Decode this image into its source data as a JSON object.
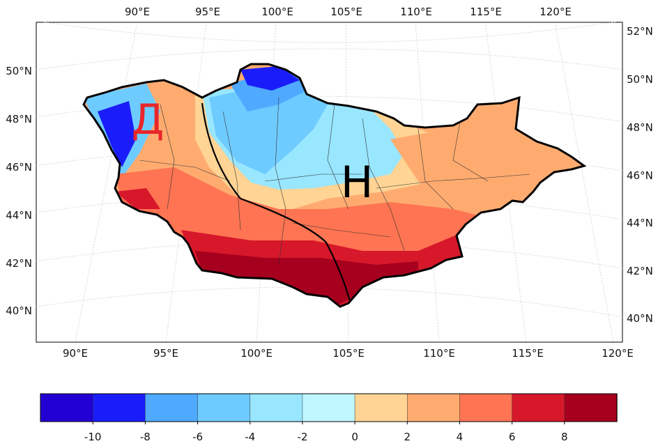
{
  "map": {
    "top_lon_labels": [
      "90°E",
      "95°E",
      "100°E",
      "105°E",
      "110°E",
      "115°E",
      "120°E"
    ],
    "bottom_lon_labels": [
      "90°E",
      "95°E",
      "100°E",
      "105°E",
      "110°E",
      "115°E",
      "120°E"
    ],
    "left_lat_labels": [
      "50°N",
      "48°N",
      "46°N",
      "44°N",
      "42°N",
      "40°N"
    ],
    "right_lat_labels": [
      "52°N",
      "50°N",
      "48°N",
      "46°N",
      "44°N",
      "42°N",
      "40°N"
    ],
    "region_west_label": "Д",
    "region_east_label": "Н",
    "region_west_color": "#e8262a",
    "region_east_color": "#000000"
  },
  "colorbar": {
    "tick_labels": [
      "-10",
      "-8",
      "-6",
      "-4",
      "-2",
      "0",
      "2",
      "4",
      "6",
      "8"
    ],
    "colors": [
      "#2200d4",
      "#1a1dfa",
      "#4faaff",
      "#6ecbff",
      "#99e6ff",
      "#bff6ff",
      "#ffd494",
      "#ffab70",
      "#ff7452",
      "#d7182b",
      "#a6001e"
    ]
  }
}
